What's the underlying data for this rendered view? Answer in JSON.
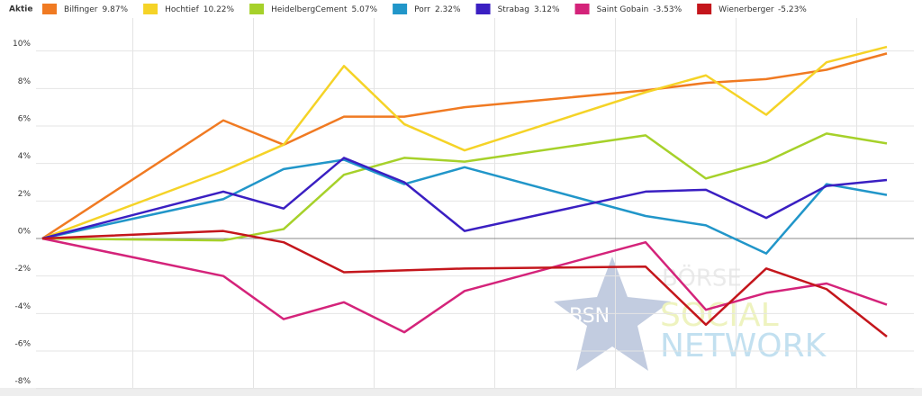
{
  "chart_data": {
    "type": "line",
    "title": "Aktie",
    "x": [
      0,
      3,
      4,
      5,
      6,
      7,
      10,
      11,
      12,
      13,
      14
    ],
    "xlim": [
      0,
      14
    ],
    "xticks": [
      1.5,
      3.5,
      5.5,
      7.5,
      9.5,
      11.5,
      13.5
    ],
    "ylim": [
      -8.4,
      12
    ],
    "yticks": [
      {
        "value": 10,
        "label": "10%"
      },
      {
        "value": 8,
        "label": "8%"
      },
      {
        "value": 6,
        "label": "6%"
      },
      {
        "value": 4,
        "label": "4%"
      },
      {
        "value": 2,
        "label": "2%"
      },
      {
        "value": 0,
        "label": "0%"
      },
      {
        "value": -2,
        "label": "-2%"
      },
      {
        "value": -4,
        "label": "-4%"
      },
      {
        "value": -6,
        "label": "-6%"
      },
      {
        "value": -8,
        "label": "-8%"
      }
    ],
    "grid": true,
    "legend": "top",
    "watermark": [
      "BSN",
      "BÖRSE",
      "SOCIAL",
      "NETWORK"
    ],
    "series": [
      {
        "name": "Bilfinger",
        "value_label": "9.87%",
        "color": "#f07a22",
        "values": [
          0,
          6.3,
          5.0,
          6.5,
          6.5,
          7.0,
          7.9,
          8.3,
          8.5,
          9.0,
          9.87
        ]
      },
      {
        "name": "Hochtief",
        "value_label": "10.22%",
        "color": "#f5d327",
        "values": [
          0,
          3.6,
          5.0,
          9.2,
          6.1,
          4.7,
          7.8,
          8.7,
          6.6,
          9.4,
          10.22
        ]
      },
      {
        "name": "HeidelbergCement",
        "value_label": "5.07%",
        "color": "#a6d12a",
        "values": [
          0,
          -0.1,
          0.5,
          3.4,
          4.3,
          4.1,
          5.5,
          3.2,
          4.1,
          5.6,
          5.07
        ]
      },
      {
        "name": "Porr",
        "value_label": "2.32%",
        "color": "#2196c9",
        "values": [
          0,
          2.1,
          3.7,
          4.2,
          2.9,
          3.8,
          1.2,
          0.7,
          -0.8,
          2.9,
          2.32
        ]
      },
      {
        "name": "Strabag",
        "value_label": "3.12%",
        "color": "#3a1fc2",
        "values": [
          0,
          2.5,
          1.6,
          4.3,
          3.0,
          0.4,
          2.5,
          2.6,
          1.1,
          2.8,
          3.12
        ]
      },
      {
        "name": "Saint Gobain",
        "value_label": "-3.53%",
        "color": "#d4237a",
        "values": [
          0,
          -2.0,
          -4.3,
          -3.4,
          -5.0,
          -2.8,
          -0.2,
          -3.8,
          -2.9,
          -2.4,
          -3.53
        ]
      },
      {
        "name": "Wienerberger",
        "value_label": "-5.23%",
        "color": "#c4161c",
        "values": [
          0,
          0.4,
          -0.2,
          -1.8,
          -1.7,
          -1.6,
          -1.5,
          -4.6,
          -1.6,
          -2.7,
          -5.23
        ]
      }
    ]
  }
}
